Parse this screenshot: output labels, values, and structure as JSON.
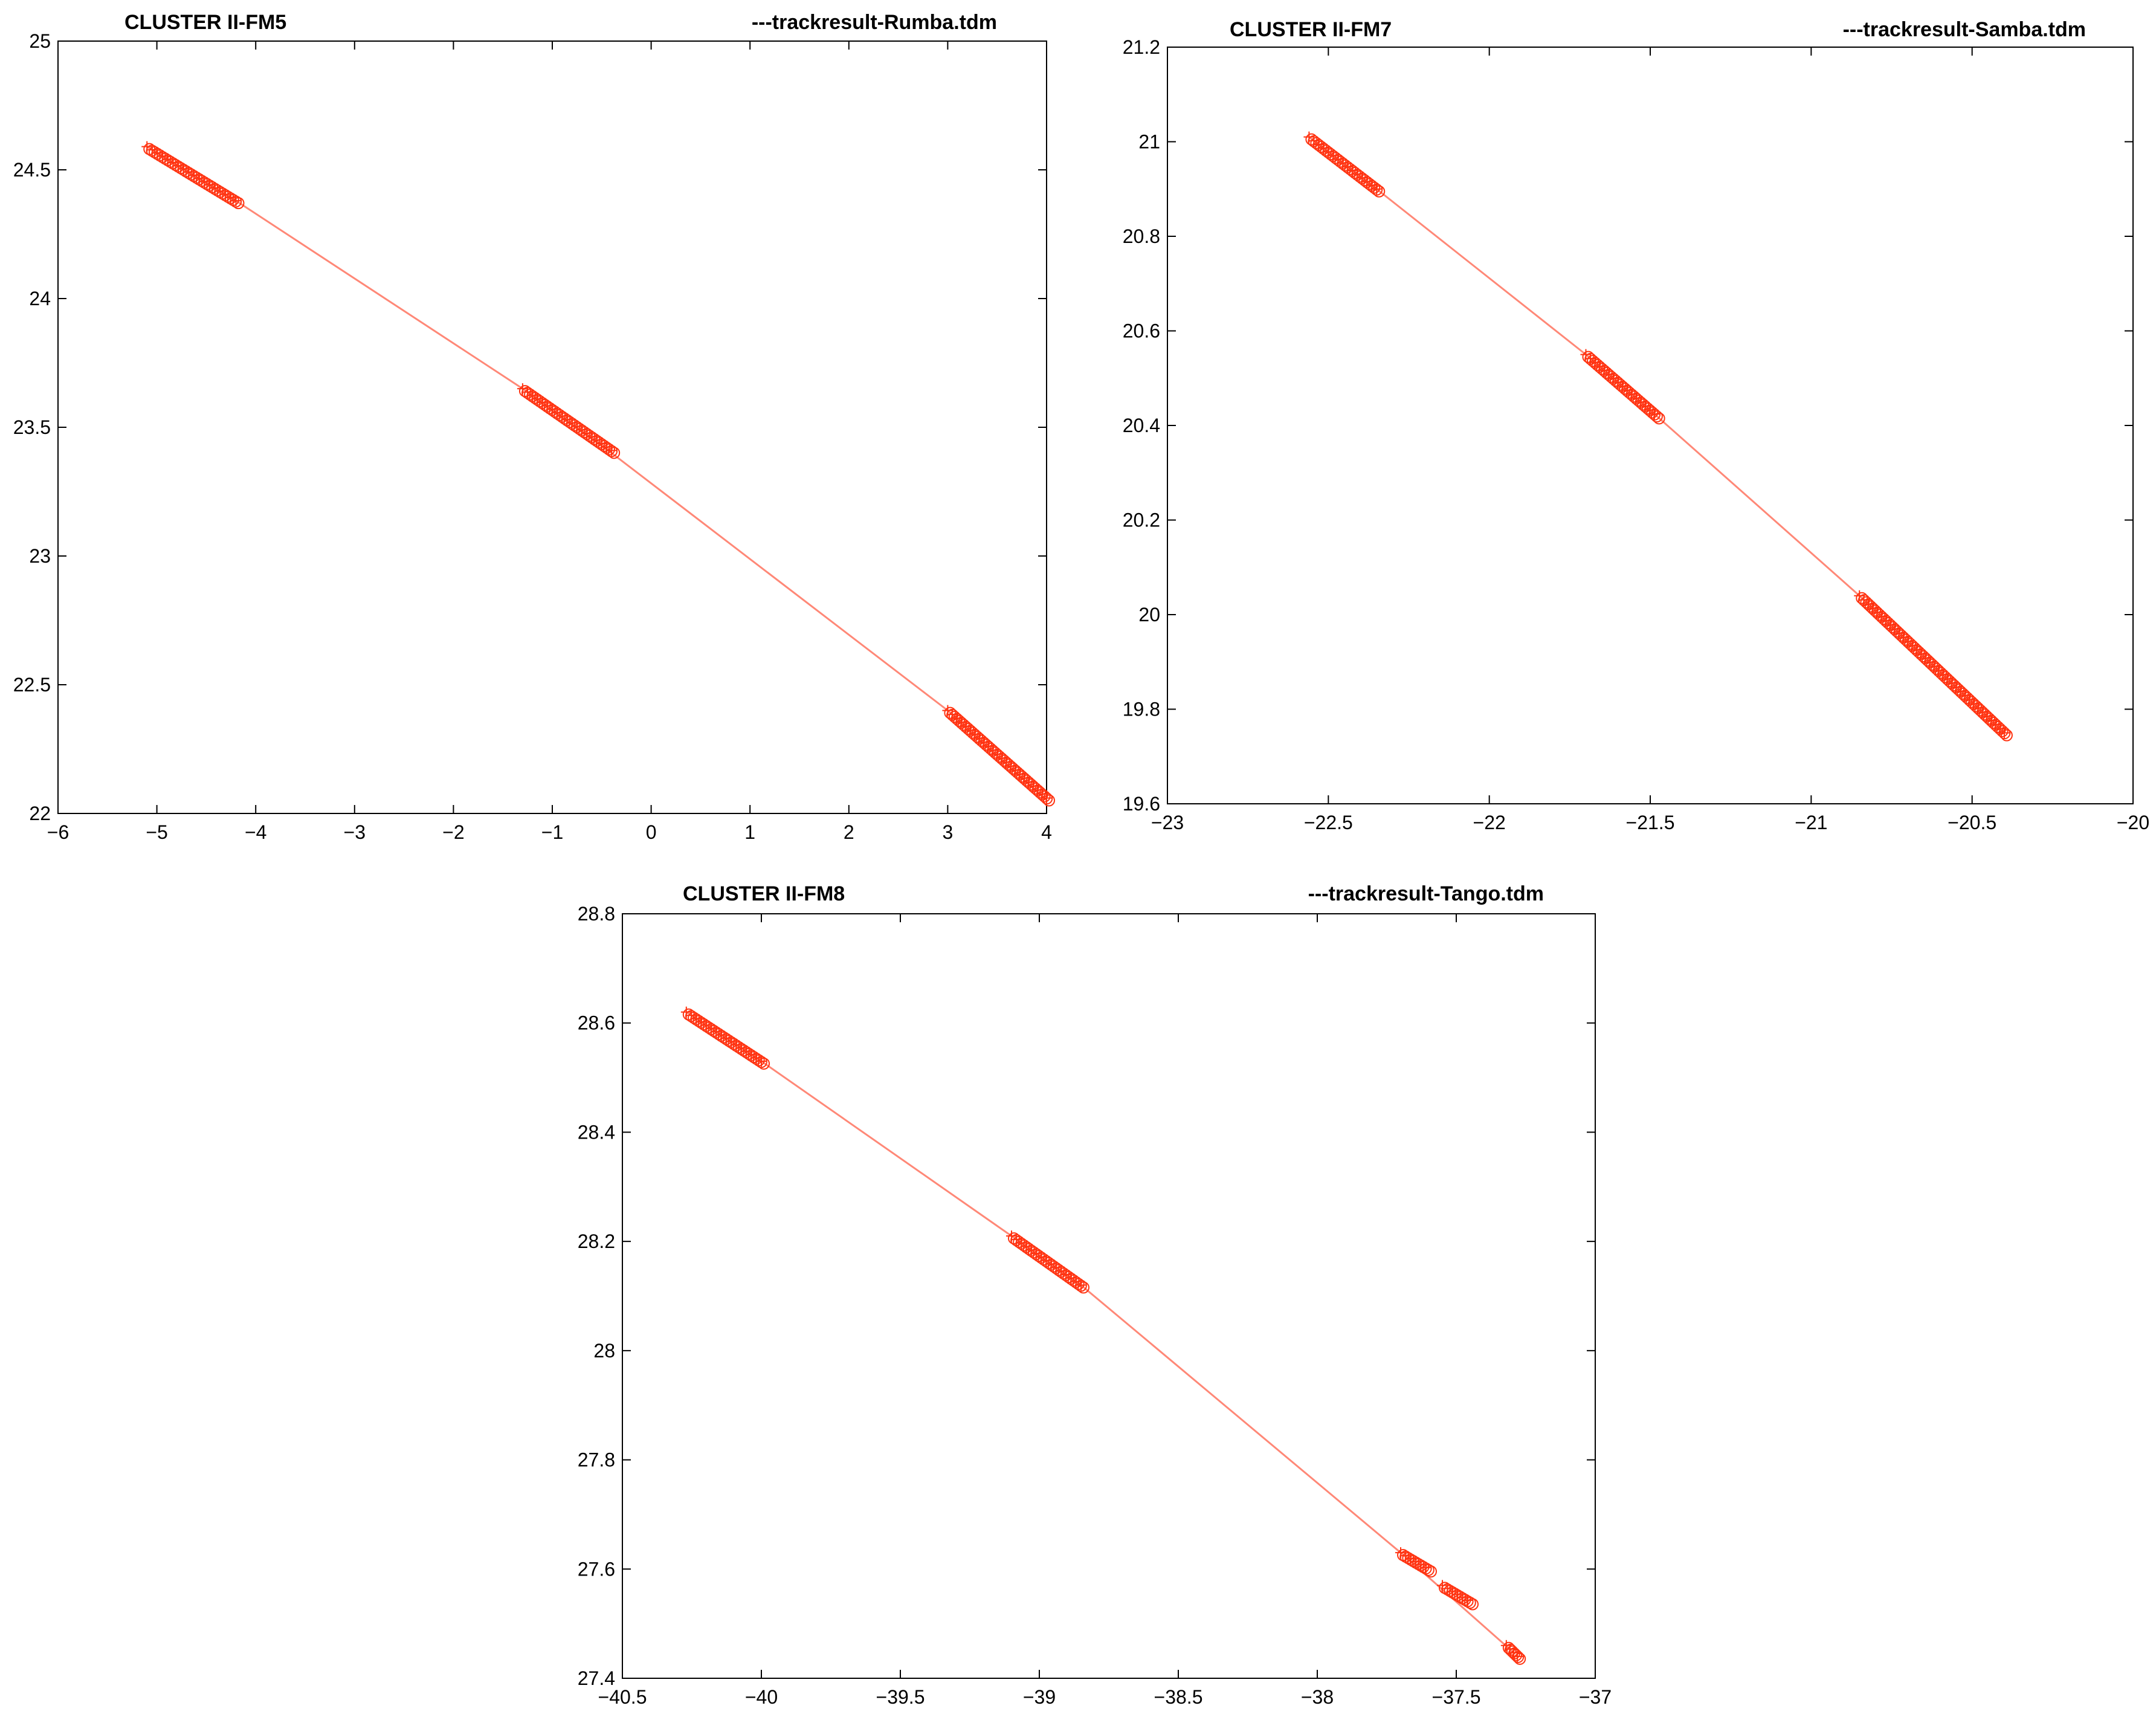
{
  "chart_data": [
    {
      "type": "scatter",
      "title": "CLUSTER II-FM5",
      "subtitle": "---trackresult-Rumba.tdm",
      "xlim": [
        -6,
        4
      ],
      "ylim": [
        22,
        25
      ],
      "xticks": [
        -6,
        -5,
        -4,
        -3,
        -2,
        -1,
        0,
        1,
        2,
        3,
        4
      ],
      "xtick_labels": [
        "−6",
        "−5",
        "−4",
        "−3",
        "−2",
        "−1",
        "0",
        "1",
        "2",
        "3",
        "4"
      ],
      "yticks": [
        22,
        22.5,
        23,
        23.5,
        24,
        24.5,
        25
      ],
      "ytick_labels": [
        "22",
        "22.5",
        "23",
        "23.5",
        "24",
        "24.5",
        "25"
      ],
      "grid": false,
      "track_line": {
        "x": [
          -5.1,
          -4.2,
          -1.3,
          -0.4,
          3.0,
          4.0
        ],
        "y": [
          24.59,
          24.38,
          23.65,
          23.4,
          22.4,
          22.05
        ]
      },
      "segments": [
        {
          "x": [
            -5.1,
            -4.2
          ],
          "y": [
            24.59,
            24.38
          ]
        },
        {
          "x": [
            -1.3,
            -0.4
          ],
          "y": [
            23.65,
            23.41
          ]
        },
        {
          "x": [
            3.0,
            4.0
          ],
          "y": [
            22.4,
            22.06
          ]
        }
      ]
    },
    {
      "type": "scatter",
      "title": "CLUSTER II-FM7",
      "subtitle": "---trackresult-Samba.tdm",
      "xlim": [
        -23,
        -20
      ],
      "ylim": [
        19.6,
        21.2
      ],
      "xticks": [
        -23,
        -22.5,
        -22,
        -21.5,
        -21,
        -20.5,
        -20
      ],
      "xtick_labels": [
        "−23",
        "−22.5",
        "−22",
        "−21.5",
        "−21",
        "−20.5",
        "−20"
      ],
      "yticks": [
        19.6,
        19.8,
        20,
        20.2,
        20.4,
        20.6,
        20.8,
        21,
        21.2
      ],
      "ytick_labels": [
        "19.6",
        "19.8",
        "20",
        "20.2",
        "20.4",
        "20.6",
        "20.8",
        "21",
        "21.2"
      ],
      "grid": false,
      "track_line": {
        "x": [
          -22.56,
          -22.35,
          -21.7,
          -21.48,
          -20.85,
          -20.4
        ],
        "y": [
          21.01,
          20.9,
          20.55,
          20.42,
          20.04,
          19.75
        ]
      },
      "segments": [
        {
          "x": [
            -22.56,
            -22.35
          ],
          "y": [
            21.01,
            20.9
          ]
        },
        {
          "x": [
            -21.7,
            -21.48
          ],
          "y": [
            20.55,
            20.42
          ]
        },
        {
          "x": [
            -20.85,
            -20.4
          ],
          "y": [
            20.04,
            19.75
          ]
        }
      ]
    },
    {
      "type": "scatter",
      "title": "CLUSTER II-FM8",
      "subtitle": "---trackresult-Tango.tdm",
      "xlim": [
        -40.5,
        -37
      ],
      "ylim": [
        27.4,
        28.8
      ],
      "xticks": [
        -40.5,
        -40,
        -39.5,
        -39,
        -38.5,
        -38,
        -37.5,
        -37
      ],
      "xtick_labels": [
        "−40.5",
        "−40",
        "−39.5",
        "−39",
        "−38.5",
        "−38",
        "−37.5",
        "−37"
      ],
      "yticks": [
        27.4,
        27.6,
        27.8,
        28,
        28.2,
        28.4,
        28.6,
        28.8
      ],
      "ytick_labels": [
        "27.4",
        "27.6",
        "27.8",
        "28",
        "28.2",
        "28.4",
        "28.6",
        "28.8"
      ],
      "grid": false,
      "track_line": {
        "x": [
          -40.27,
          -40.0,
          -39.1,
          -38.85,
          -37.7,
          -37.3
        ],
        "y": [
          28.62,
          28.53,
          28.21,
          28.12,
          27.63,
          27.45
        ]
      },
      "segments": [
        {
          "x": [
            -40.27,
            -40.0
          ],
          "y": [
            28.62,
            28.53
          ]
        },
        {
          "x": [
            -39.1,
            -38.85
          ],
          "y": [
            28.21,
            28.12
          ]
        },
        {
          "x": [
            -37.7,
            -37.6
          ],
          "y": [
            27.63,
            27.6
          ]
        },
        {
          "x": [
            -37.55,
            -37.45
          ],
          "y": [
            27.57,
            27.54
          ]
        },
        {
          "x": [
            -37.32,
            -37.28
          ],
          "y": [
            27.46,
            27.44
          ]
        }
      ]
    }
  ],
  "colors": {
    "marker": "#ff3311",
    "line": "#ff6a55",
    "axis": "#000000"
  }
}
